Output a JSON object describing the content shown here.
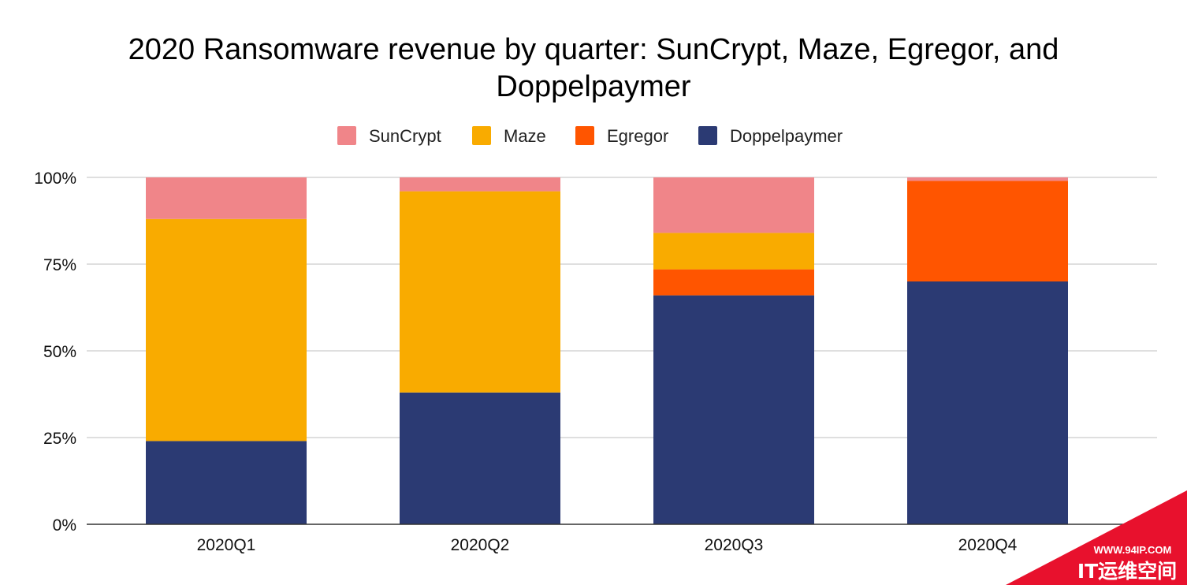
{
  "chart_data": {
    "type": "bar",
    "stacked": true,
    "percent_stacked": true,
    "title_lines": [
      "2020 Ransomware revenue by quarter: SunCrypt, Maze, Egregor, and",
      "Doppelpaymer"
    ],
    "categories": [
      "2020Q1",
      "2020Q2",
      "2020Q3",
      "2020Q4"
    ],
    "series": [
      {
        "name": "Doppelpaymer",
        "color": "#2b3a73",
        "values": [
          24,
          38,
          66,
          70
        ]
      },
      {
        "name": "Egregor",
        "color": "#ff5500",
        "values": [
          0,
          0,
          7.5,
          29
        ]
      },
      {
        "name": "Maze",
        "color": "#f9ab00",
        "values": [
          64,
          58,
          10.5,
          0
        ]
      },
      {
        "name": "SunCrypt",
        "color": "#f08589",
        "values": [
          12,
          4,
          16,
          1
        ]
      }
    ],
    "legend_order": [
      "SunCrypt",
      "Maze",
      "Egregor",
      "Doppelpaymer"
    ],
    "legend_position": "top",
    "yticks": [
      "0%",
      "25%",
      "50%",
      "75%",
      "100%"
    ],
    "ylim": [
      0,
      100
    ],
    "grid": true,
    "xlabel": "",
    "ylabel": ""
  },
  "watermark": {
    "url": "WWW.94IP.COM",
    "name": "IT运维空间",
    "color": "#e8112d"
  }
}
